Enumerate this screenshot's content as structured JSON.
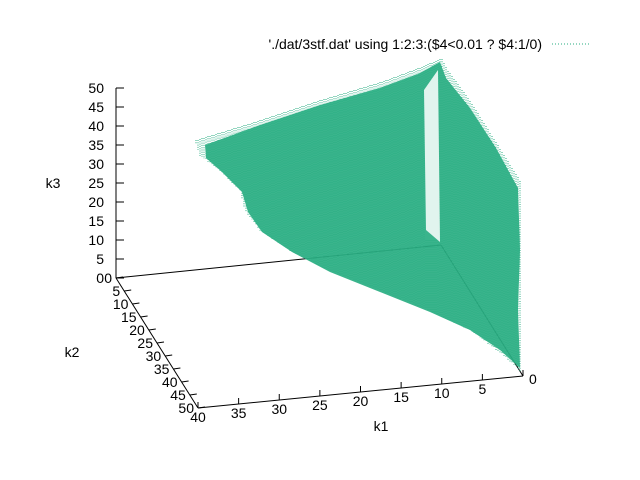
{
  "chart_data": {
    "type": "scatter",
    "plot_kind": "3d-surface-points",
    "series": [
      {
        "name": "'./dat/3stf.dat' using 1:2:3:($4<0.01 ? $4:1/0)",
        "color": "#29ae82"
      }
    ],
    "axes": {
      "x": {
        "label": "k1",
        "range": [
          0,
          40
        ],
        "ticks": [
          0,
          5,
          10,
          15,
          20,
          25,
          30,
          35,
          40
        ]
      },
      "y": {
        "label": "k2",
        "range": [
          0,
          50
        ],
        "ticks": [
          0,
          5,
          10,
          15,
          20,
          25,
          30,
          35,
          40,
          45,
          50
        ]
      },
      "z": {
        "label": "k3",
        "range": [
          0,
          50
        ],
        "ticks": [
          0,
          5,
          10,
          15,
          20,
          25,
          30,
          35,
          40,
          45,
          50
        ]
      }
    },
    "grid": false,
    "legend_position": "top-right"
  }
}
